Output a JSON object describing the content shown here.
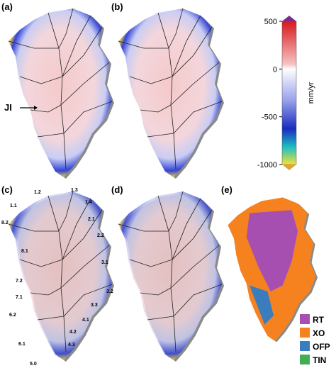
{
  "panels": [
    "(a)",
    "(b)",
    "(c)",
    "(d)",
    "(e)"
  ],
  "annotation": "JI",
  "colorbar": {
    "label": "mm/yr",
    "lim": [
      -1000,
      500
    ],
    "ticks": [
      500,
      0,
      -500,
      -1000
    ]
  },
  "basins": [
    "1.1",
    "1.2",
    "1.3",
    "1.4",
    "2.1",
    "2.2",
    "3.1",
    "3.2",
    "3.3",
    "4.1",
    "4.2",
    "4.3",
    "5.0",
    "6.1",
    "6.2",
    "7.1",
    "7.2",
    "8.1",
    "8.2"
  ],
  "legend": [
    {
      "name": "RT",
      "color": "#a64fb0"
    },
    {
      "name": "XO",
      "color": "#f5821f"
    },
    {
      "name": "OFP",
      "color": "#3a7dbf"
    },
    {
      "name": "TIN",
      "color": "#3fae55"
    }
  ]
}
